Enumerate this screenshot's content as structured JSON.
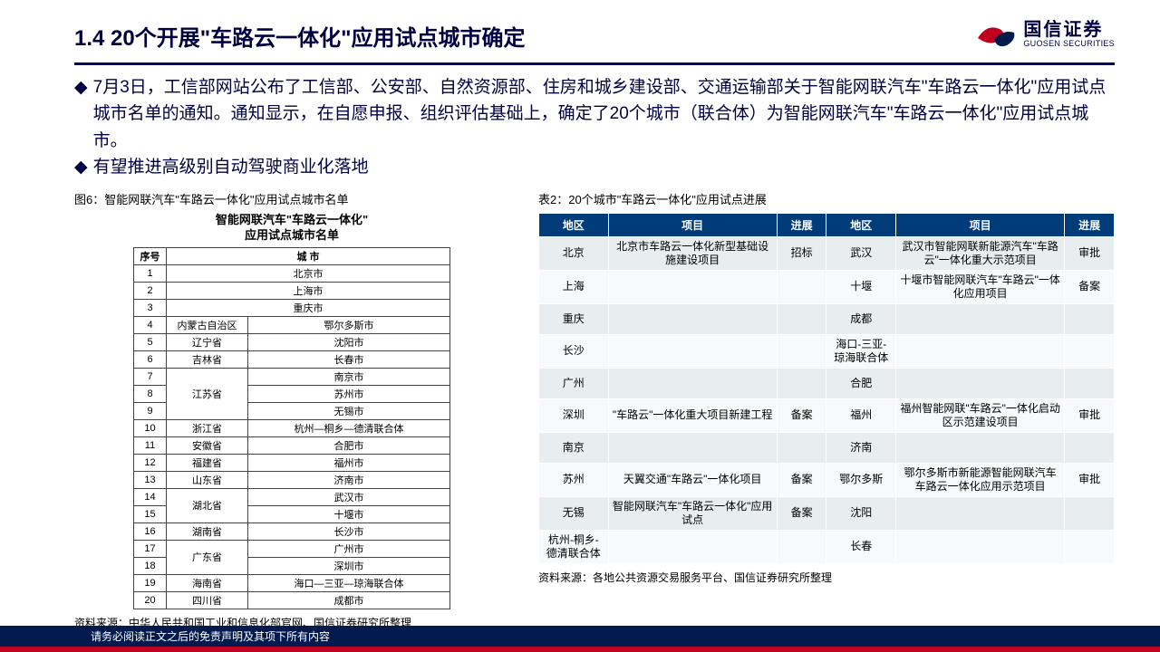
{
  "header": {
    "title": "1.4 20个开展\"车路云一体化\"应用试点城市确定",
    "logo_cn": "国信证券",
    "logo_en": "GUOSEN SECURITIES"
  },
  "bullets": [
    "7月3日，工信部网站公布了工信部、公安部、自然资源部、住房和城乡建设部、交通运输部关于智能网联汽车\"车路云一体化\"应用试点城市名单的通知。通知显示，在自愿申报、组织评估基础上，确定了20个城市（联合体）为智能网联汽车\"车路云一体化\"应用试点城市。",
    "有望推进高级别自动驾驶商业化落地"
  ],
  "fig6": {
    "caption": "图6：智能网联汽车\"车路云一体化\"应用试点城市名单",
    "inner_title_l1": "智能网联汽车\"车路云一体化\"",
    "inner_title_l2": "应用试点城市名单",
    "headers": [
      "序号",
      "城 市"
    ],
    "rows": [
      {
        "n": "1",
        "prov": "",
        "city": "北京市"
      },
      {
        "n": "2",
        "prov": "",
        "city": "上海市"
      },
      {
        "n": "3",
        "prov": "",
        "city": "重庆市"
      },
      {
        "n": "4",
        "prov": "内蒙古自治区",
        "city": "鄂尔多斯市"
      },
      {
        "n": "5",
        "prov": "辽宁省",
        "city": "沈阳市"
      },
      {
        "n": "6",
        "prov": "吉林省",
        "city": "长春市"
      },
      {
        "n": "7",
        "prov": "",
        "city": "南京市",
        "prov_start": "江苏省",
        "prov_span": 3
      },
      {
        "n": "8",
        "prov": "",
        "city": "苏州市"
      },
      {
        "n": "9",
        "prov": "",
        "city": "无锡市"
      },
      {
        "n": "10",
        "prov": "浙江省",
        "city": "杭州—桐乡—德清联合体"
      },
      {
        "n": "11",
        "prov": "安徽省",
        "city": "合肥市"
      },
      {
        "n": "12",
        "prov": "福建省",
        "city": "福州市"
      },
      {
        "n": "13",
        "prov": "山东省",
        "city": "济南市"
      },
      {
        "n": "14",
        "prov": "",
        "city": "武汉市",
        "prov_start": "湖北省",
        "prov_span": 2
      },
      {
        "n": "15",
        "prov": "",
        "city": "十堰市"
      },
      {
        "n": "16",
        "prov": "湖南省",
        "city": "长沙市"
      },
      {
        "n": "17",
        "prov": "",
        "city": "广州市",
        "prov_start": "广东省",
        "prov_span": 2
      },
      {
        "n": "18",
        "prov": "",
        "city": "深圳市"
      },
      {
        "n": "19",
        "prov": "海南省",
        "city": "海口—三亚—琼海联合体"
      },
      {
        "n": "20",
        "prov": "四川省",
        "city": "成都市"
      }
    ],
    "source": "资料来源：中华人民共和国工业和信息化部官网、国信证券研究所整理"
  },
  "tab2": {
    "caption": "表2：20个城市\"车路云一体化\"应用试点进展",
    "headers": [
      "地区",
      "项目",
      "进展",
      "地区",
      "项目",
      "进展"
    ],
    "rows": [
      [
        "北京",
        "北京市车路云一体化新型基础设施建设项目",
        "招标",
        "武汉",
        "武汉市智能网联新能源汽车\"车路云\"一体化重大示范项目",
        "审批"
      ],
      [
        "上海",
        "",
        "",
        "十堰",
        "十堰市智能网联汽车\"车路云\"一体化应用项目",
        "备案"
      ],
      [
        "重庆",
        "",
        "",
        "成都",
        "",
        ""
      ],
      [
        "长沙",
        "",
        "",
        "海口-三亚-琼海联合体",
        "",
        ""
      ],
      [
        "广州",
        "",
        "",
        "合肥",
        "",
        ""
      ],
      [
        "深圳",
        "\"车路云\"一体化重大项目新建工程",
        "备案",
        "福州",
        "福州智能网联\"车路云\"一体化启动区示范建设项目",
        "审批"
      ],
      [
        "南京",
        "",
        "",
        "济南",
        "",
        ""
      ],
      [
        "苏州",
        "天翼交通\"车路云\"一体化项目",
        "备案",
        "鄂尔多斯",
        "鄂尔多斯市新能源智能网联汽车车路云一体化应用示范项目",
        "审批"
      ],
      [
        "无锡",
        "智能网联汽车\"车路云一体化\"应用试点",
        "备案",
        "沈阳",
        "",
        ""
      ],
      [
        "杭州-桐乡-德清联合体",
        "",
        "",
        "长春",
        "",
        ""
      ]
    ],
    "source": "资料来源：各地公共资源交易服务平台、国信证券研究所整理"
  },
  "footer": "请务必阅读正文之后的免责声明及其项下所有内容",
  "colors": {
    "header_rule": "#000060",
    "t2_head_bg": "#003b7a",
    "t2_odd": "#e8eef0",
    "t2_even": "#f7f9fa",
    "footer_bg": "#001a4d",
    "footer_red": "#c00020",
    "logo_red": "#c00020",
    "logo_blue": "#001a4d"
  }
}
